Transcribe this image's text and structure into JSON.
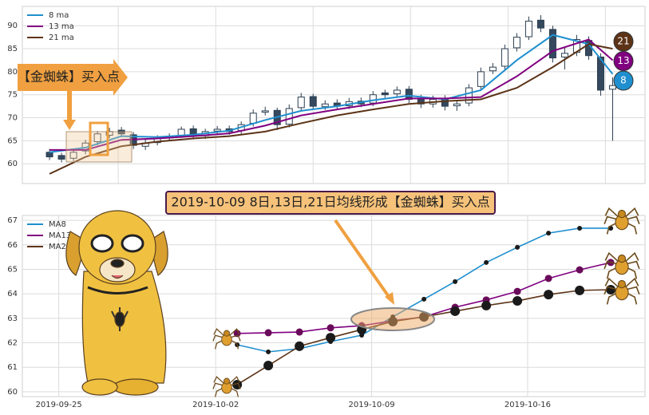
{
  "chart_data": [
    {
      "type": "candlestick",
      "x": [
        0,
        1,
        2,
        3,
        4,
        5,
        6,
        7,
        8,
        9,
        10,
        11,
        12,
        13,
        14,
        15,
        16,
        17,
        18,
        19,
        20,
        21,
        22,
        23,
        24,
        25,
        26,
        27,
        28,
        29,
        30,
        31,
        32,
        33,
        34,
        35,
        36,
        37,
        38,
        39,
        40,
        41,
        42,
        43,
        44,
        45,
        46,
        47
      ],
      "open": [
        62.5,
        61.8,
        61.2,
        62.8,
        64.8,
        66.2,
        67.3,
        66.3,
        63.8,
        64.6,
        65.6,
        66.2,
        67.6,
        66.1,
        67.1,
        67.6,
        67.2,
        68.8,
        71.2,
        71.6,
        68.6,
        72.2,
        74.6,
        72.4,
        73.2,
        72.6,
        73.6,
        73.2,
        75.4,
        75.2,
        76.2,
        74.2,
        73.0,
        74.2,
        72.6,
        73.2,
        76.8,
        80.2,
        81.2,
        85.2,
        87.6,
        91.2,
        89.2,
        83.2,
        84.2,
        86.8,
        83.2,
        76.2
      ],
      "high": [
        63.2,
        62.4,
        63.1,
        65.2,
        67.1,
        67.8,
        68.0,
        66.9,
        65.3,
        66.2,
        66.6,
        68.1,
        68.3,
        67.6,
        68.2,
        68.3,
        69.2,
        71.8,
        72.4,
        72.2,
        72.9,
        75.4,
        75.2,
        73.8,
        74.0,
        74.3,
        74.4,
        75.8,
        76.1,
        76.8,
        76.9,
        75.0,
        74.8,
        74.9,
        73.7,
        77.3,
        80.9,
        81.9,
        85.9,
        88.4,
        92.0,
        92.3,
        90.0,
        85.2,
        88.0,
        87.7,
        84.0,
        78.8
      ],
      "low": [
        60.8,
        60.3,
        60.6,
        62.1,
        64.0,
        65.6,
        65.8,
        63.2,
        63.0,
        64.0,
        65.0,
        65.6,
        65.3,
        65.4,
        66.5,
        66.3,
        66.5,
        68.1,
        70.5,
        67.3,
        67.9,
        71.5,
        71.8,
        71.7,
        71.8,
        71.9,
        72.3,
        72.5,
        74.3,
        74.5,
        73.2,
        72.1,
        72.2,
        71.6,
        71.5,
        72.5,
        76.0,
        79.5,
        80.4,
        84.4,
        86.9,
        88.6,
        82.0,
        80.5,
        83.4,
        82.6,
        74.8,
        65.0
      ],
      "close": [
        61.5,
        61.0,
        62.5,
        64.5,
        66.5,
        67.0,
        66.5,
        64.0,
        64.5,
        65.5,
        66.0,
        67.5,
        66.0,
        67.0,
        67.5,
        67.0,
        68.5,
        71.0,
        71.5,
        68.5,
        72.0,
        74.5,
        72.5,
        73.0,
        72.5,
        73.5,
        73.0,
        75.0,
        75.0,
        76.0,
        74.0,
        73.0,
        74.0,
        72.5,
        73.0,
        76.5,
        80.0,
        81.0,
        85.0,
        87.5,
        91.0,
        89.5,
        83.0,
        84.0,
        87.0,
        83.5,
        76.0,
        77.0
      ],
      "series": [
        {
          "name": "8 ma",
          "window": 8,
          "color": "#1f8fcf",
          "x": [
            0,
            3,
            6,
            9,
            12,
            15,
            18,
            21,
            24,
            27,
            30,
            33,
            36,
            39,
            42,
            45,
            47
          ],
          "values": [
            62.5,
            63.5,
            66.0,
            65.8,
            66.3,
            67.2,
            69.5,
            71.5,
            72.5,
            73.8,
            74.8,
            74.0,
            76.0,
            82.5,
            88.0,
            86.0,
            79.5
          ]
        },
        {
          "name": "13 ma",
          "window": 13,
          "color": "#800080",
          "x": [
            0,
            3,
            6,
            9,
            12,
            15,
            18,
            21,
            24,
            27,
            30,
            33,
            36,
            39,
            42,
            45,
            47
          ],
          "values": [
            63.0,
            63.0,
            65.2,
            65.5,
            66.0,
            66.6,
            68.3,
            70.5,
            71.8,
            73.0,
            74.2,
            74.2,
            74.5,
            79.0,
            84.5,
            87.0,
            82.5
          ]
        },
        {
          "name": "21 ma",
          "window": 21,
          "color": "#5c3317",
          "x": [
            0,
            3,
            6,
            9,
            12,
            15,
            18,
            21,
            24,
            27,
            30,
            33,
            36,
            39,
            42,
            45,
            47
          ],
          "values": [
            57.8,
            61.5,
            63.8,
            64.8,
            65.5,
            66.0,
            67.0,
            68.8,
            70.5,
            71.8,
            73.0,
            73.6,
            74.0,
            76.5,
            81.0,
            86.0,
            85.0
          ]
        }
      ],
      "xlim": [
        -2.27,
        49.7
      ],
      "xticks": [
        5.73,
        13.87,
        22.0,
        30.13,
        38.27,
        46.4
      ],
      "ylim": [
        55.7,
        94.2
      ],
      "yticks": [
        60,
        65,
        70,
        75,
        80,
        85,
        90
      ],
      "grid": true,
      "legend": "upper left",
      "annotation": "【金蜘蛛】买入点"
    },
    {
      "type": "line",
      "title": "2019-10-09 8日,13日,21日均线形成【金蜘蛛】买入点",
      "x": [
        0,
        1,
        2,
        3,
        4,
        5,
        6,
        7,
        8,
        9,
        10,
        11,
        12
      ],
      "series": [
        {
          "name": "MA8",
          "color": "#1f8fcf",
          "marker_color": "#1a1a1a",
          "marker_size": 3,
          "values": [
            61.92,
            61.63,
            61.76,
            62.05,
            62.31,
            63.06,
            63.78,
            64.5,
            65.28,
            65.9,
            66.48,
            66.68,
            66.68
          ]
        },
        {
          "name": "MA13",
          "color": "#800080",
          "marker_color": "#6a0a5a",
          "marker_size": 4.5,
          "values": [
            62.38,
            62.41,
            62.44,
            62.61,
            62.7,
            62.9,
            63.06,
            63.45,
            63.75,
            64.1,
            64.63,
            64.98,
            65.28
          ]
        },
        {
          "name": "MA21",
          "color": "#5c3317",
          "marker_color": "#1a1a1a",
          "marker_size": 6,
          "values": [
            60.29,
            61.07,
            61.86,
            62.21,
            62.54,
            62.87,
            63.06,
            63.29,
            63.52,
            63.71,
            63.97,
            64.14,
            64.17
          ]
        }
      ],
      "xlim": [
        -6.9,
        13.1
      ],
      "xticks": [
        {
          "value": -5.73,
          "label": "2019-09-25"
        },
        {
          "value": -0.69,
          "label": "2019-10-02"
        },
        {
          "value": 4.32,
          "label": "2019-10-09"
        },
        {
          "value": 9.33,
          "label": "2019-10-16"
        }
      ],
      "ylim": [
        59.8,
        67.2
      ],
      "yticks": [
        60,
        61,
        62,
        63,
        64,
        65,
        66,
        67
      ],
      "grid": true,
      "legend": "upper left"
    }
  ]
}
